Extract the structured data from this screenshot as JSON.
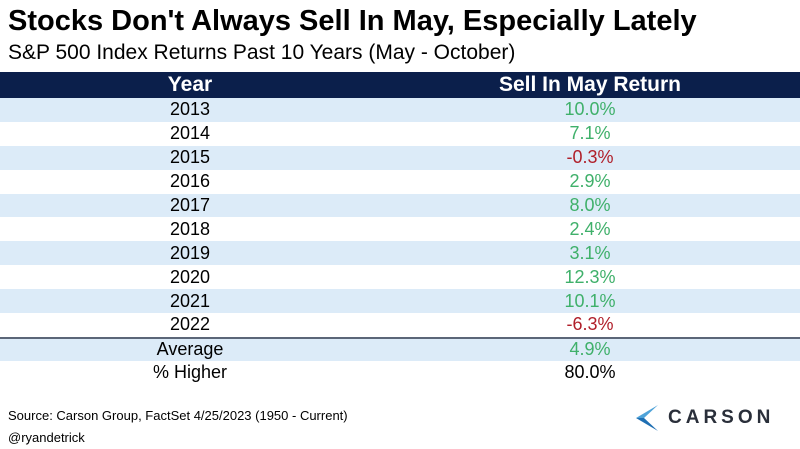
{
  "chart_data": {
    "type": "table",
    "title": "Stocks Don't Always Sell In May, Especially Lately",
    "subtitle": "S&P 500 Index Returns Past 10 Years (May - October)",
    "columns": [
      "Year",
      "Sell In May Return"
    ],
    "rows": [
      {
        "year": "2013",
        "value": "10.0%",
        "sign": "pos"
      },
      {
        "year": "2014",
        "value": "7.1%",
        "sign": "pos"
      },
      {
        "year": "2015",
        "value": "-0.3%",
        "sign": "neg"
      },
      {
        "year": "2016",
        "value": "2.9%",
        "sign": "pos"
      },
      {
        "year": "2017",
        "value": "8.0%",
        "sign": "pos"
      },
      {
        "year": "2018",
        "value": "2.4%",
        "sign": "pos"
      },
      {
        "year": "2019",
        "value": "3.1%",
        "sign": "pos"
      },
      {
        "year": "2020",
        "value": "12.3%",
        "sign": "pos"
      },
      {
        "year": "2021",
        "value": "10.1%",
        "sign": "pos"
      },
      {
        "year": "2022",
        "value": "-6.3%",
        "sign": "neg"
      }
    ],
    "summary": [
      {
        "label": "Average",
        "value": "4.9%",
        "sign": "pos"
      },
      {
        "label": "% Higher",
        "value": "80.0%",
        "sign": "blk"
      }
    ]
  },
  "footer": {
    "source": "Source: Carson Group, FactSet 4/25/2023 (1950 - Current)",
    "handle": "@ryandetrick"
  },
  "logo": {
    "text": "CARSON"
  },
  "colors": {
    "header_bg": "#0b1f4b",
    "alt_row": "#dcebf8",
    "positive": "#3fb06a",
    "negative": "#b01f2a"
  }
}
